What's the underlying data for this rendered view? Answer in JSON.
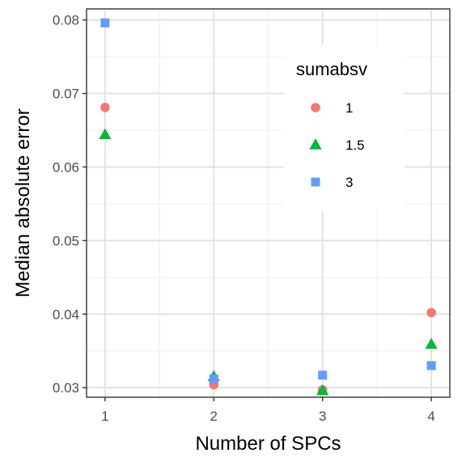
{
  "chart_data": {
    "type": "scatter",
    "xlabel": "Number of SPCs",
    "ylabel": "Median absolute error",
    "xlim": [
      0.83,
      4.17
    ],
    "ylim": [
      0.0287,
      0.0815
    ],
    "x_ticks": [
      1,
      2,
      3,
      4
    ],
    "x_tick_labels": [
      "1",
      "2",
      "3",
      "4"
    ],
    "y_ticks": [
      0.03,
      0.04,
      0.05,
      0.06,
      0.07,
      0.08
    ],
    "y_tick_labels": [
      "0.03",
      "0.04",
      "0.05",
      "0.06",
      "0.07",
      "0.08"
    ],
    "grid": true,
    "legend": {
      "title": "sumabsv",
      "placement": "top-right inside"
    },
    "series": [
      {
        "name": "1",
        "shape": "circle",
        "color": "#F8766D",
        "x": [
          1,
          2,
          3,
          4
        ],
        "y": [
          0.0681,
          0.0304,
          0.0297,
          0.0402
        ]
      },
      {
        "name": "1.5",
        "shape": "triangle",
        "color": "#00BA38",
        "x": [
          1,
          2,
          3,
          4
        ],
        "y": [
          0.0644,
          0.0315,
          0.0296,
          0.0359
        ]
      },
      {
        "name": "3",
        "shape": "square",
        "color": "#619CFF",
        "x": [
          1,
          2,
          3,
          4
        ],
        "y": [
          0.0796,
          0.0312,
          0.0317,
          0.033
        ]
      }
    ]
  }
}
